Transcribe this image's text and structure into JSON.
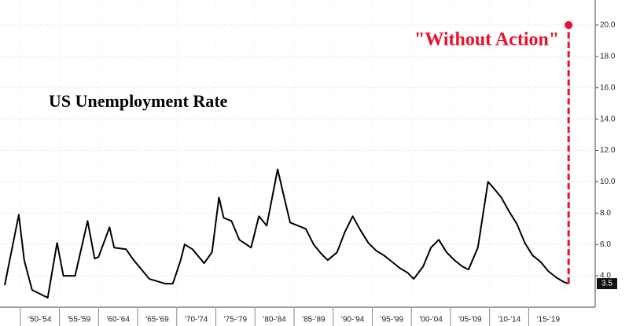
{
  "chart_data": {
    "type": "line",
    "title": "US Unemployment Rate",
    "color": "#000000",
    "x": [
      1948.0,
      1949.8,
      1950.5,
      1951.5,
      1953.5,
      1954.7,
      1955.5,
      1957.0,
      1958.6,
      1959.5,
      1960.0,
      1961.4,
      1962.0,
      1963.5,
      1964.5,
      1965.5,
      1966.5,
      1968.5,
      1969.5,
      1970.5,
      1971.0,
      1972.0,
      1973.5,
      1974.5,
      1975.4,
      1976.0,
      1977.0,
      1978.0,
      1979.5,
      1980.5,
      1981.5,
      1982.9,
      1983.5,
      1984.5,
      1985.5,
      1986.5,
      1987.5,
      1988.5,
      1989.3,
      1990.5,
      1991.5,
      1992.5,
      1993.5,
      1994.5,
      1995.5,
      1996.5,
      1997.5,
      1998.5,
      1999.5,
      2000.3,
      2001.5,
      2002.5,
      2003.5,
      2004.5,
      2005.5,
      2006.5,
      2007.3,
      2008.5,
      2009.8,
      2010.5,
      2011.5,
      2012.5,
      2013.5,
      2014.5,
      2015.5,
      2016.5,
      2017.5,
      2018.5,
      2019.5,
      2020.1
    ],
    "values": [
      3.4,
      7.9,
      5.0,
      3.1,
      2.6,
      6.1,
      4.0,
      4.0,
      7.5,
      5.1,
      5.2,
      7.1,
      5.8,
      5.7,
      5.0,
      4.4,
      3.8,
      3.5,
      3.5,
      5.0,
      6.0,
      5.7,
      4.8,
      5.5,
      9.0,
      7.7,
      7.5,
      6.3,
      5.8,
      7.8,
      7.2,
      10.8,
      9.5,
      7.4,
      7.2,
      7.0,
      6.0,
      5.4,
      5.0,
      5.5,
      6.8,
      7.8,
      6.9,
      6.1,
      5.6,
      5.3,
      4.9,
      4.5,
      4.2,
      3.8,
      4.6,
      5.8,
      6.3,
      5.5,
      5.0,
      4.6,
      4.4,
      5.8,
      10.0,
      9.6,
      9.0,
      8.1,
      7.3,
      6.1,
      5.3,
      4.9,
      4.3,
      3.9,
      3.6,
      3.5
    ],
    "xlim": [
      1947.4,
      2023.5
    ],
    "xticks": [
      {
        "value": 1950,
        "label": "'50-'54"
      },
      {
        "value": 1955,
        "label": "'55-'59"
      },
      {
        "value": 1960,
        "label": "'60-'64"
      },
      {
        "value": 1965,
        "label": "'65-'69"
      },
      {
        "value": 1970,
        "label": "'70-'74"
      },
      {
        "value": 1975,
        "label": "'75-'79"
      },
      {
        "value": 1980,
        "label": "'80-'84"
      },
      {
        "value": 1985,
        "label": "'85-'89"
      },
      {
        "value": 1990,
        "label": "'90-'94"
      },
      {
        "value": 1995,
        "label": "'95-'99"
      },
      {
        "value": 2000,
        "label": "'00-'04"
      },
      {
        "value": 2005,
        "label": "'05-'09"
      },
      {
        "value": 2010,
        "label": "'10-'14"
      },
      {
        "value": 2015,
        "label": "'15-'19"
      }
    ],
    "ylim": [
      2,
      21.5
    ],
    "yticks": [
      {
        "value": 4,
        "label": "4.0"
      },
      {
        "value": 6,
        "label": "6.0"
      },
      {
        "value": 8,
        "label": "8.0"
      },
      {
        "value": 10,
        "label": "10.0"
      },
      {
        "value": 12,
        "label": "12.0"
      },
      {
        "value": 14,
        "label": "14.0"
      },
      {
        "value": 16,
        "label": "16.0"
      },
      {
        "value": 18,
        "label": "18.0"
      },
      {
        "value": 20,
        "label": "20.0"
      }
    ],
    "grid": true,
    "projection": {
      "label": "\"Without Action\"",
      "x": 2020.1,
      "from": 3.5,
      "to": 20,
      "color": "#e8112d"
    }
  }
}
